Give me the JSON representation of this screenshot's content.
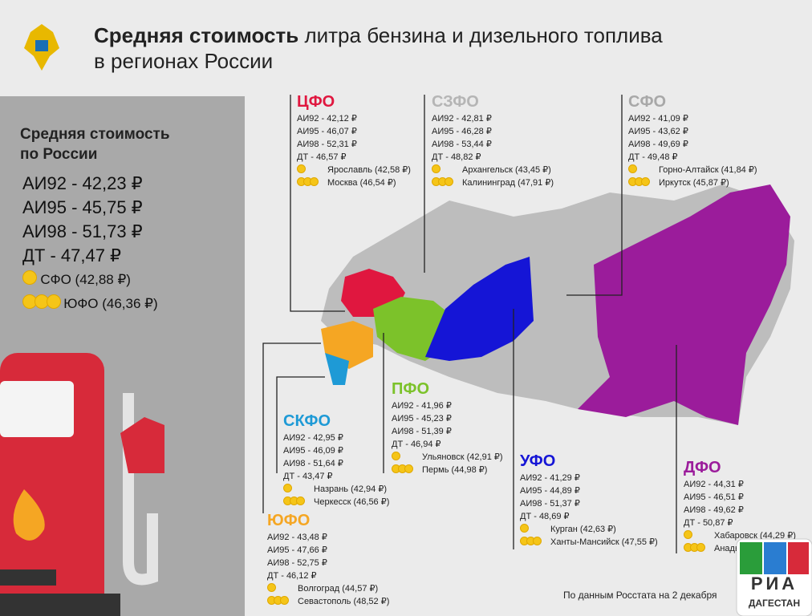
{
  "header": {
    "title_bold": "Средняя стоимость",
    "title_rest": "литра бензина и дизельного топлива",
    "title_line2": "в регионах России"
  },
  "russia": {
    "title_line1": "Средняя стоимость",
    "title_line2": "по России",
    "lines": [
      "АИ92 - 42,23 ₽",
      "АИ95 - 45,75 ₽",
      "АИ98 - 51,73 ₽",
      "ДТ - 47,47 ₽"
    ],
    "cheapest": "СФО (42,88 ₽)",
    "most_expensive": "ЮФО (46,36 ₽)"
  },
  "districts": [
    {
      "name": "ЦФО",
      "color": "#e0173f",
      "lines": [
        "АИ92 - 42,12 ₽",
        "АИ95 - 46,07 ₽",
        "АИ98 - 52,31 ₽",
        "ДТ - 46,57 ₽"
      ],
      "cheapest": "Ярославль (42,58 ₽)",
      "most_expensive": "Москва (46,54 ₽)"
    },
    {
      "name": "СЗФО",
      "color": "#b5b5b5",
      "lines": [
        "АИ92 - 42,81 ₽",
        "АИ95 - 46,28 ₽",
        "АИ98 - 53,44 ₽",
        "ДТ - 48,82 ₽"
      ],
      "cheapest": "Архангельск (43,45 ₽)",
      "most_expensive": "Калининград (47,91 ₽)"
    },
    {
      "name": "СФО",
      "color": "#a8a8a8",
      "lines": [
        "АИ92 - 41,09 ₽",
        "АИ95 - 43,62 ₽",
        "АИ98 - 49,69 ₽",
        "ДТ - 49,48 ₽"
      ],
      "cheapest": "Горно-Алтайск (41,84 ₽)",
      "most_expensive": "Иркутск (45,87 ₽)"
    },
    {
      "name": "ПФО",
      "color": "#7cc22a",
      "lines": [
        "АИ92 - 41,96 ₽",
        "АИ95 - 45,23 ₽",
        "АИ98 - 51,39 ₽",
        "ДТ - 46,94 ₽"
      ],
      "cheapest": "Ульяновск (42,91 ₽)",
      "most_expensive": "Пермь (44,98 ₽)"
    },
    {
      "name": "СКФО",
      "color": "#1e9ad6",
      "lines": [
        "АИ92 - 42,95 ₽",
        "АИ95 - 46,09 ₽",
        "АИ98 - 51,64 ₽",
        "ДТ - 43,47 ₽"
      ],
      "cheapest": "Назрань (42,94 ₽)",
      "most_expensive": "Черкесск (46,56 ₽)"
    },
    {
      "name": "ЮФО",
      "color": "#f5a623",
      "lines": [
        "АИ92 - 43,48 ₽",
        "АИ95 - 47,66 ₽",
        "АИ98 - 52,75 ₽",
        "ДТ - 46,12 ₽"
      ],
      "cheapest": "Волгоград (44,57 ₽)",
      "most_expensive": "Севастополь (48,52 ₽)"
    },
    {
      "name": "УФО",
      "color": "#1515d6",
      "lines": [
        "АИ92 - 41,29 ₽",
        "АИ95 - 44,89 ₽",
        "АИ98 - 51,37 ₽",
        "ДТ - 48,69 ₽"
      ],
      "cheapest": "Курган (42,63 ₽)",
      "most_expensive": "Ханты-Мансийск (47,55 ₽)"
    },
    {
      "name": "ДФО",
      "color": "#9b1c9b",
      "lines": [
        "АИ92 - 44,31 ₽",
        "АИ95 - 46,51 ₽",
        "АИ98 - 49,62 ₽",
        "ДТ - 50,87 ₽"
      ],
      "cheapest": "Хабаровск (44,29 ₽)",
      "most_expensive": "Анадырь"
    }
  ],
  "footer": {
    "source": "По данным Росстата на 2 декабря",
    "logo_top": "РИА",
    "logo_bottom": "ДАГЕСТАН"
  }
}
